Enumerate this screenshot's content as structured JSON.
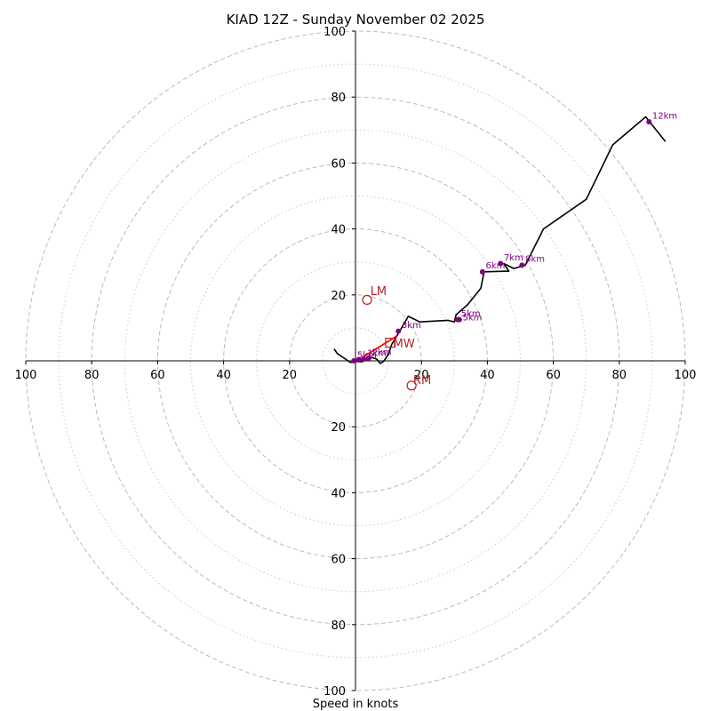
{
  "chart_data": {
    "type": "hodograph",
    "title": "KIAD 12Z - Sunday November 02 2025",
    "xlabel": "Speed in knots",
    "rings_dashed": [
      20,
      40,
      60,
      80,
      100
    ],
    "rings_dotted": [
      10,
      30,
      50,
      70,
      90
    ],
    "max_speed": 100,
    "tick_labels": {
      "left": [
        "20",
        "40",
        "60",
        "80",
        "100"
      ],
      "right": [
        "20",
        "40",
        "60",
        "80",
        "100"
      ],
      "up": [
        "20",
        "40",
        "60",
        "80",
        "100"
      ],
      "down": [
        "20",
        "40",
        "60",
        "80",
        "100"
      ]
    },
    "hodograph_uv": [
      [
        -6.5,
        3.6
      ],
      [
        -5.5,
        2.2
      ],
      [
        -3,
        0.5
      ],
      [
        -1.5,
        -0.5
      ],
      [
        0,
        -0.2
      ],
      [
        2,
        -0.3
      ],
      [
        3.5,
        0.5
      ],
      [
        5,
        1
      ],
      [
        6.5,
        0.5
      ],
      [
        7.5,
        -0.8
      ],
      [
        8.5,
        -0.2
      ],
      [
        10,
        2
      ],
      [
        11,
        5
      ],
      [
        12.5,
        7.5
      ],
      [
        14,
        10
      ],
      [
        16,
        13.5
      ],
      [
        19.5,
        11.8
      ],
      [
        28,
        12.3
      ],
      [
        30,
        11.8
      ],
      [
        30.5,
        14
      ],
      [
        34,
        17
      ],
      [
        38,
        22
      ],
      [
        39,
        27
      ],
      [
        46.5,
        27.2
      ],
      [
        45,
        29.5
      ],
      [
        48,
        28
      ],
      [
        51.5,
        29
      ],
      [
        57,
        40
      ],
      [
        70,
        49
      ],
      [
        78,
        65.5
      ],
      [
        88,
        74
      ],
      [
        94,
        66.5
      ]
    ],
    "height_markers": [
      {
        "label": "5km",
        "u": 31,
        "v": 12.5,
        "label_dx": 1,
        "label_dy": 1
      },
      {
        "label": "5km",
        "u": 31.5,
        "v": 12.5,
        "label_dx": 1,
        "label_dy": -0.3
      },
      {
        "label": "6km",
        "u": 38.5,
        "v": 27,
        "label_dx": 1,
        "label_dy": 1
      },
      {
        "label": "7km",
        "u": 44,
        "v": 29.5,
        "label_dx": 1,
        "label_dy": 1
      },
      {
        "label": "8km",
        "u": 50.5,
        "v": 29,
        "label_dx": 1,
        "label_dy": 1
      },
      {
        "label": "12km",
        "u": 89,
        "v": 72.5,
        "label_dx": 1,
        "label_dy": 1
      },
      {
        "label": "3km",
        "u": 13,
        "v": 9,
        "label_dx": 1,
        "label_dy": 1
      },
      {
        "label": "2km",
        "u": 4,
        "v": 0.8,
        "label_dx": 1,
        "label_dy": 1
      },
      {
        "label": "1km",
        "u": 2.5,
        "v": 0.5,
        "label_dx": 1,
        "label_dy": 1
      },
      {
        "label": "5km",
        "u": -0.5,
        "v": 0,
        "label_dx": 1,
        "label_dy": 1
      },
      {
        "label": "",
        "u": 1,
        "v": 0.4,
        "label_dx": 1,
        "label_dy": 1
      }
    ],
    "shear_vector": {
      "from": [
        2,
        1
      ],
      "to": [
        12.5,
        7.5
      ],
      "color": "#ff0000"
    },
    "storm_motion": [
      {
        "label": "LM",
        "u": 3.5,
        "v": 18.5,
        "marker": "circle",
        "label_dx": 1,
        "label_dy": 1.5
      },
      {
        "label": "RM",
        "u": 17,
        "v": -7.5,
        "marker": "circle",
        "label_dx": 0.5,
        "label_dy": 0.5
      },
      {
        "label": "MW",
        "u": 10.5,
        "v": 5.5,
        "marker": "square",
        "label_dx": 1,
        "label_dy": -1.5
      }
    ],
    "colors": {
      "profile": "#000000",
      "markers": "#800080",
      "storm": "#b22222",
      "grid": "#bbbbbb"
    }
  }
}
